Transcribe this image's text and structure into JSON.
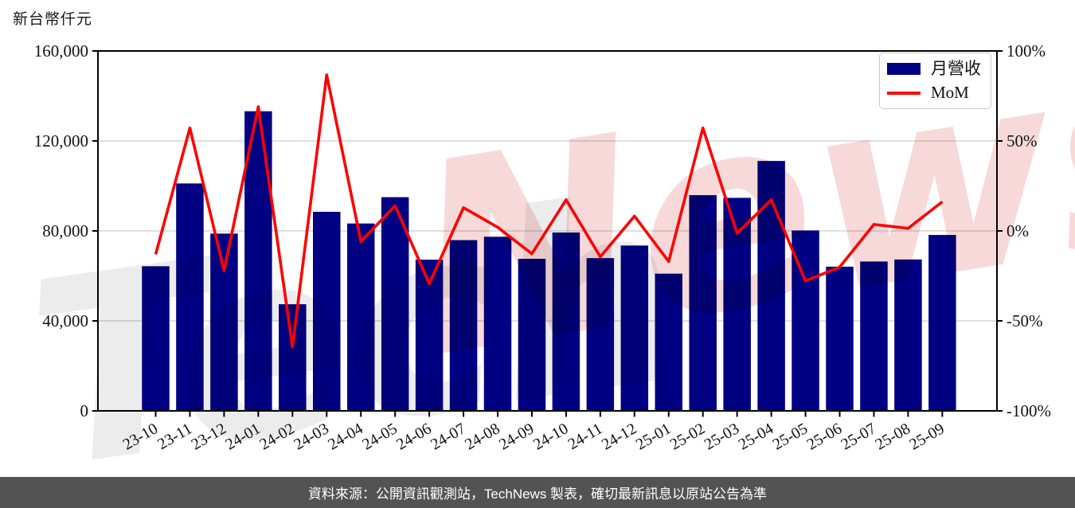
{
  "y_axis_title": "新台幣仟元",
  "legend": {
    "bar_label": "月營收",
    "line_label": "MoM"
  },
  "watermark": {
    "part1": "Tech",
    "part2": "News"
  },
  "footer": {
    "text": "資料來源：公開資訊觀測站，TechNews 製表，確切最新訊息以原站公告為準"
  },
  "colors": {
    "bar": "#000082",
    "line": "#ff0000",
    "grid": "#cdcdcd",
    "axis": "#000000",
    "tick_label": "#111111",
    "footer_bg": "#535353",
    "footer_text": "#ffffff",
    "watermark_gray": "#ececec",
    "watermark_pink": "#f7d9d9",
    "legend_border": "#cccccc"
  },
  "chart_data": {
    "type": "bar+line",
    "title": "",
    "categories": [
      "23-10",
      "23-11",
      "23-12",
      "24-01",
      "24-02",
      "24-03",
      "24-04",
      "24-05",
      "24-06",
      "24-07",
      "24-08",
      "24-09",
      "24-10",
      "24-11",
      "24-12",
      "25-01",
      "25-02",
      "25-03",
      "25-04",
      "25-05",
      "25-06",
      "25-07",
      "25-08",
      "25-09"
    ],
    "series": [
      {
        "name": "月營收",
        "type": "bar",
        "axis": "left",
        "unit": "新台幣仟元",
        "values": [
          64300,
          101100,
          78800,
          133200,
          47400,
          88500,
          83300,
          95000,
          67200,
          75900,
          77400,
          67600,
          79300,
          67900,
          73500,
          61000,
          95900,
          94700,
          111100,
          80200,
          64100,
          66400,
          67300,
          78200
        ]
      },
      {
        "name": "MoM",
        "type": "line",
        "axis": "right",
        "unit": "%",
        "values": [
          -13.0,
          57.2,
          -22.1,
          69.0,
          -64.4,
          86.7,
          -5.9,
          14.0,
          -29.3,
          12.9,
          2.0,
          -12.7,
          17.3,
          -14.4,
          8.2,
          -17.0,
          57.2,
          -1.3,
          17.3,
          -27.8,
          -20.1,
          3.6,
          1.4,
          16.2
        ]
      }
    ],
    "left_axis": {
      "title": "新台幣仟元",
      "range": [
        0,
        160000
      ],
      "tick_values": [
        0,
        40000,
        80000,
        120000,
        160000
      ],
      "tick_labels": [
        "0",
        "40,000",
        "80,000",
        "120,000",
        "160,000"
      ]
    },
    "right_axis": {
      "range": [
        -100,
        100
      ],
      "tick_values": [
        -100,
        -50,
        0,
        50,
        100
      ],
      "tick_labels": [
        "-100%",
        "-50%",
        "0%",
        "50%",
        "100%"
      ]
    },
    "grid": "horizontal",
    "gridline_values": [
      40000,
      80000,
      120000
    ],
    "legend_position": "top-right"
  }
}
